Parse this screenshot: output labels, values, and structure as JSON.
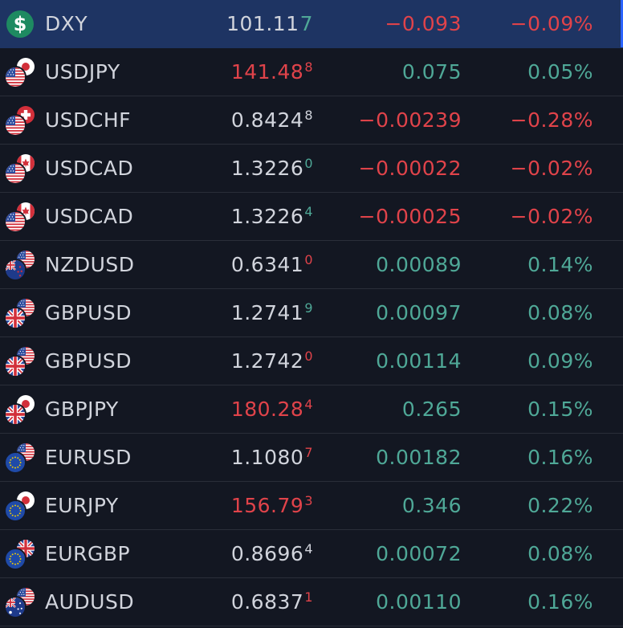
{
  "rows": [
    {
      "symbol": "DXY",
      "price_main": "101.11",
      "price_last": "7",
      "price_color": "neutral",
      "last_color": "up",
      "last_big": true,
      "change": "−0.093",
      "change_pct": "−0.09%",
      "dir": "down",
      "selected": true,
      "icon": "dollar-icon"
    },
    {
      "symbol": "USDJPY",
      "price_main": "141.48",
      "price_last": "8",
      "price_color": "down",
      "last_color": "down",
      "change": "0.075",
      "change_pct": "0.05%",
      "dir": "up",
      "front": "us",
      "back": "jp"
    },
    {
      "symbol": "USDCHF",
      "price_main": "0.8424",
      "price_last": "8",
      "price_color": "neutral",
      "last_color": "neutral",
      "change": "−0.00239",
      "change_pct": "−0.28%",
      "dir": "down",
      "front": "us",
      "back": "ch"
    },
    {
      "symbol": "USDCAD",
      "price_main": "1.3226",
      "price_last": "0",
      "price_color": "neutral",
      "last_color": "up",
      "change": "−0.00022",
      "change_pct": "−0.02%",
      "dir": "down",
      "front": "us",
      "back": "ca"
    },
    {
      "symbol": "USDCAD",
      "price_main": "1.3226",
      "price_last": "4",
      "price_color": "neutral",
      "last_color": "up",
      "change": "−0.00025",
      "change_pct": "−0.02%",
      "dir": "down",
      "front": "us",
      "back": "ca"
    },
    {
      "symbol": "NZDUSD",
      "price_main": "0.6341",
      "price_last": "0",
      "price_color": "neutral",
      "last_color": "down",
      "change": "0.00089",
      "change_pct": "0.14%",
      "dir": "up",
      "front": "nz",
      "back": "us"
    },
    {
      "symbol": "GBPUSD",
      "price_main": "1.2741",
      "price_last": "9",
      "price_color": "neutral",
      "last_color": "up",
      "change": "0.00097",
      "change_pct": "0.08%",
      "dir": "up",
      "front": "gb",
      "back": "us"
    },
    {
      "symbol": "GBPUSD",
      "price_main": "1.2742",
      "price_last": "0",
      "price_color": "neutral",
      "last_color": "down",
      "change": "0.00114",
      "change_pct": "0.09%",
      "dir": "up",
      "front": "gb",
      "back": "us"
    },
    {
      "symbol": "GBPJPY",
      "price_main": "180.28",
      "price_last": "4",
      "price_color": "down",
      "last_color": "down",
      "change": "0.265",
      "change_pct": "0.15%",
      "dir": "up",
      "front": "gb",
      "back": "jp"
    },
    {
      "symbol": "EURUSD",
      "price_main": "1.1080",
      "price_last": "7",
      "price_color": "neutral",
      "last_color": "down",
      "change": "0.00182",
      "change_pct": "0.16%",
      "dir": "up",
      "front": "eu",
      "back": "us"
    },
    {
      "symbol": "EURJPY",
      "price_main": "156.79",
      "price_last": "3",
      "price_color": "down",
      "last_color": "down",
      "change": "0.346",
      "change_pct": "0.22%",
      "dir": "up",
      "front": "eu",
      "back": "jp"
    },
    {
      "symbol": "EURGBP",
      "price_main": "0.8696",
      "price_last": "4",
      "price_color": "neutral",
      "last_color": "neutral",
      "change": "0.00072",
      "change_pct": "0.08%",
      "dir": "up",
      "front": "eu",
      "back": "gb"
    },
    {
      "symbol": "AUDUSD",
      "price_main": "0.6837",
      "price_last": "1",
      "price_color": "neutral",
      "last_color": "down",
      "change": "0.00110",
      "change_pct": "0.16%",
      "dir": "up",
      "front": "au",
      "back": "us"
    }
  ]
}
